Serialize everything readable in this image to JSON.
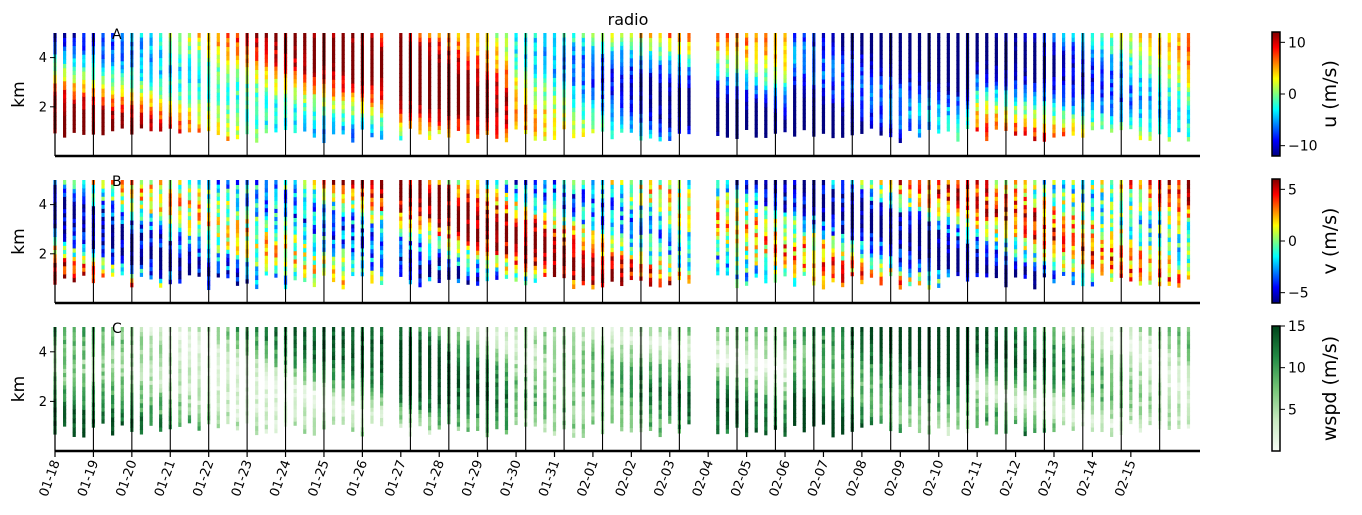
{
  "chart_data": {
    "type": "heatmap",
    "title": "radio",
    "x_tick_labels": [
      "01-18",
      "01-19",
      "01-20",
      "01-21",
      "01-22",
      "01-23",
      "01-24",
      "01-25",
      "01-26",
      "01-27",
      "01-28",
      "01-29",
      "01-30",
      "01-31",
      "02-01",
      "02-02",
      "02-03",
      "02-04",
      "02-05",
      "02-06",
      "02-07",
      "02-08",
      "02-09",
      "02-10",
      "02-11",
      "02-12",
      "02-13",
      "02-14",
      "02-15"
    ],
    "x_range": [
      "01-18",
      "02-16"
    ],
    "ylabel": "km",
    "y_ticks": [
      2,
      4
    ],
    "y_range": [
      0,
      5
    ],
    "panels": [
      {
        "letter": "A",
        "variable": "u",
        "colorbar_label": "u (m/s)",
        "colorbar_ticks": [
          -10,
          0,
          10
        ],
        "vmin": -12,
        "vmax": 12,
        "colormap": "jet",
        "colormap_stops": [
          "#00007f",
          "#0000ff",
          "#007fff",
          "#00ffff",
          "#7fff7f",
          "#ffff00",
          "#ff7f00",
          "#ff0000",
          "#7f0000"
        ]
      },
      {
        "letter": "B",
        "variable": "v",
        "colorbar_label": "v (m/s)",
        "colorbar_ticks": [
          -5,
          0,
          5
        ],
        "vmin": -6,
        "vmax": 6,
        "colormap": "jet",
        "colormap_stops": [
          "#00007f",
          "#0000ff",
          "#007fff",
          "#00ffff",
          "#7fff7f",
          "#ffff00",
          "#ff7f00",
          "#ff0000",
          "#7f0000"
        ]
      },
      {
        "letter": "C",
        "variable": "wspd",
        "colorbar_label": "wspd (m/s)",
        "colorbar_ticks": [
          5,
          10,
          15
        ],
        "vmin": 0,
        "vmax": 15,
        "colormap": "Greens",
        "colormap_stops": [
          "#f7fcf5",
          "#c7e9c0",
          "#74c476",
          "#238b45",
          "#00441b"
        ]
      }
    ],
    "grid": false,
    "legend": "none"
  }
}
